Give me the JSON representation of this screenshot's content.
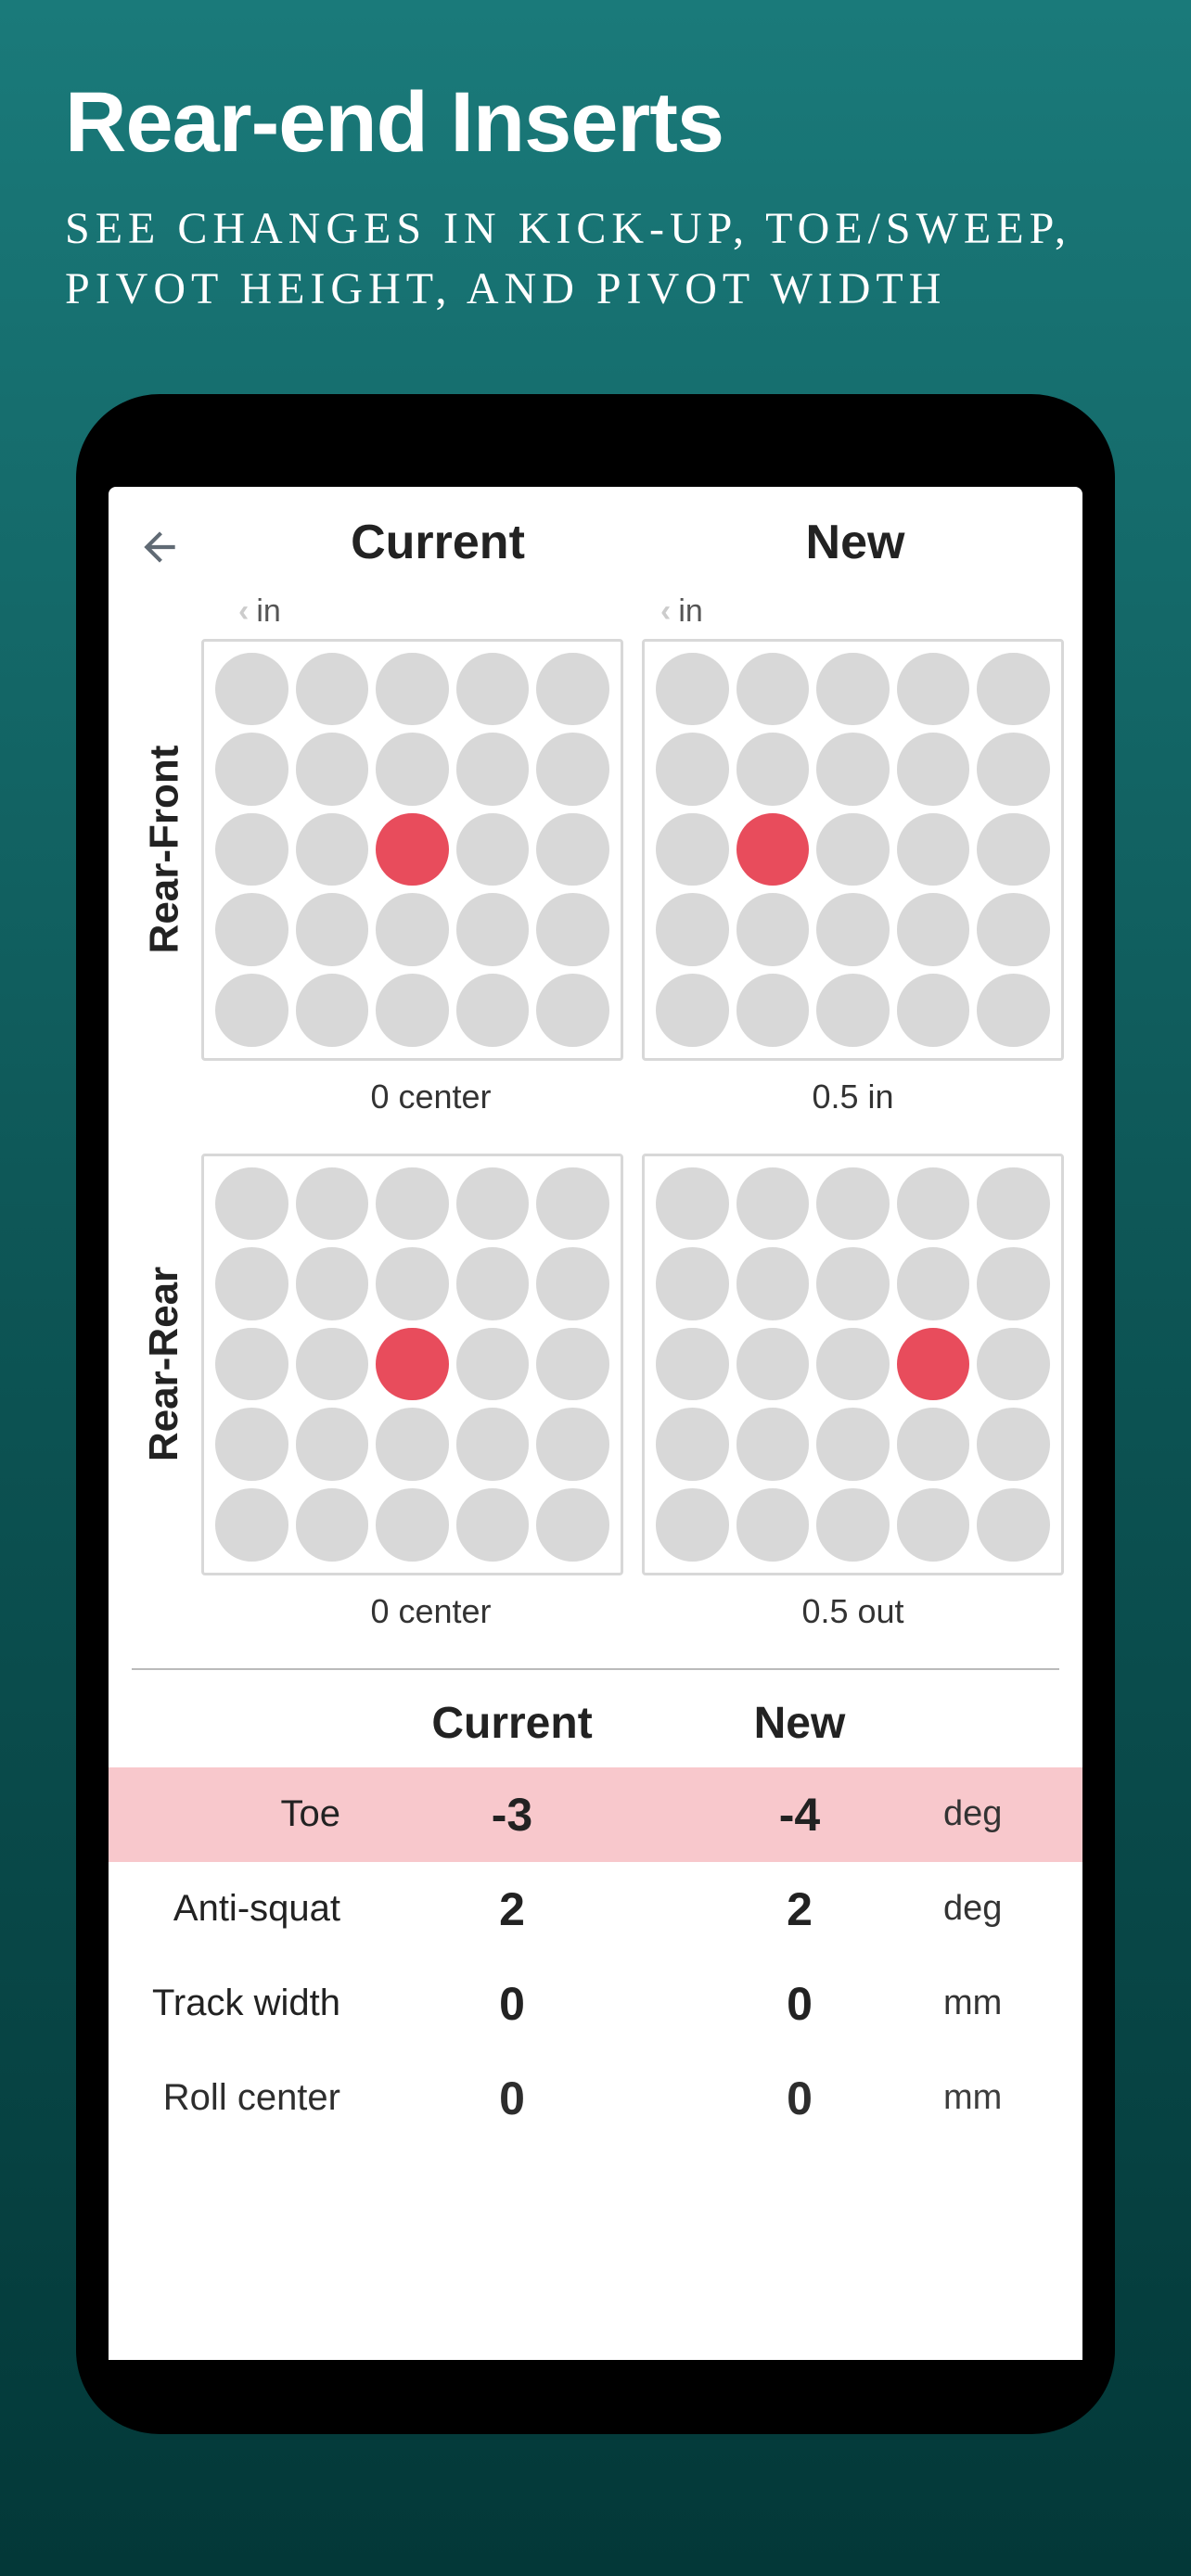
{
  "promo": {
    "title": "Rear-end Inserts",
    "subtitle": "SEE CHANGES IN KICK-UP, TOE/SWEEP, PIVOT HEIGHT, AND PIVOT WIDTH"
  },
  "colors": {
    "bg_top": "#1a7a7a",
    "bg_bottom": "#033838",
    "phone_frame": "#000000",
    "screen_bg": "#ffffff",
    "dot_default": "#d8d8d8",
    "dot_selected": "#e84c5c",
    "grid_border": "#d8d8d8",
    "highlight_row": "#f8c8cc",
    "text_dark": "#222222",
    "text_mid": "#555555",
    "divider": "#bbbbbb"
  },
  "app": {
    "header": {
      "col1": "Current",
      "col2": "New",
      "unit_label": "in"
    },
    "grids": {
      "rows": [
        {
          "label": "Rear-Front",
          "cells": [
            {
              "selected_index": 12,
              "caption": "0 center"
            },
            {
              "selected_index": 11,
              "caption": "0.5 in"
            }
          ]
        },
        {
          "label": "Rear-Rear",
          "cells": [
            {
              "selected_index": 12,
              "caption": "0 center"
            },
            {
              "selected_index": 13,
              "caption": "0.5 out"
            }
          ]
        }
      ],
      "grid_size": 5
    },
    "table": {
      "header": {
        "col1": "Current",
        "col2": "New"
      },
      "rows": [
        {
          "label": "Toe",
          "current": "-3",
          "new": "-4",
          "unit": "deg",
          "highlighted": true
        },
        {
          "label": "Anti-squat",
          "current": "2",
          "new": "2",
          "unit": "deg",
          "highlighted": false
        },
        {
          "label": "Track width",
          "current": "0",
          "new": "0",
          "unit": "mm",
          "highlighted": false
        },
        {
          "label": "Roll center",
          "current": "0",
          "new": "0",
          "unit": "mm",
          "highlighted": false
        }
      ]
    }
  }
}
